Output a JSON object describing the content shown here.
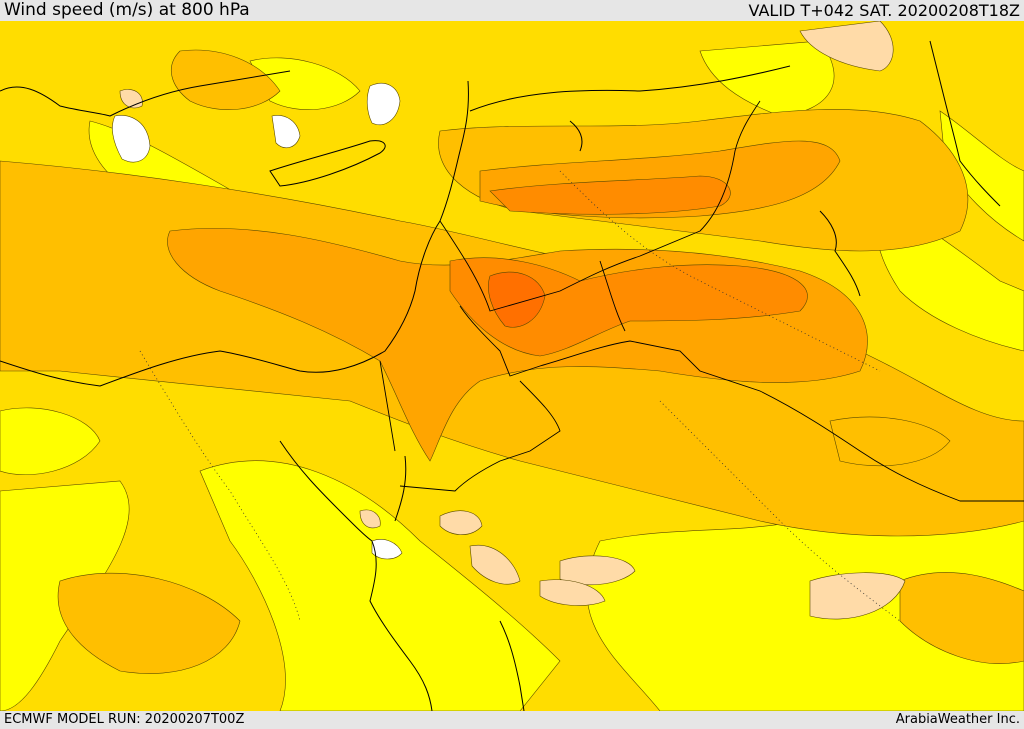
{
  "header": {
    "title": "Wind speed (m/s) at 800 hPa",
    "valid": "VALID T+042 SAT. 20200208T18Z"
  },
  "footer": {
    "model_run": "ECMWF MODEL RUN: 20200207T00Z",
    "credit": "ArabiaWeather Inc."
  },
  "palette": {
    "band_lightest": "#ffff00",
    "band_2": "#ffdd00",
    "band_3": "#ffbf00",
    "band_4": "#ffa500",
    "band_5": "#ff8c00",
    "band_6": "#ff7000",
    "calm_peach": "#ffdba8",
    "calm_white": "#ffffff",
    "border_color": "#000000"
  }
}
